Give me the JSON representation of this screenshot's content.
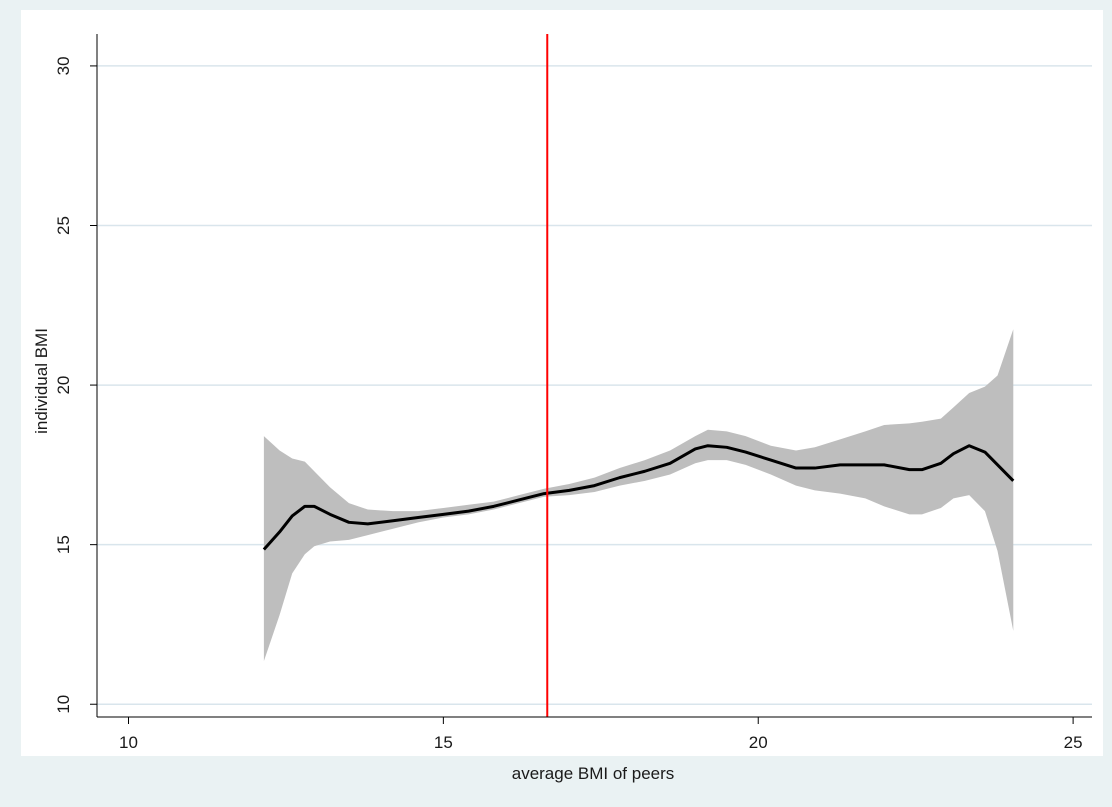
{
  "chart_data": {
    "type": "line",
    "title": "",
    "xlabel": "average BMI of peers",
    "ylabel": "individual BMI",
    "xlim": [
      9.5,
      25.3
    ],
    "ylim": [
      9.6,
      31.0
    ],
    "x_ticks": [
      10,
      15,
      20,
      25
    ],
    "y_ticks": [
      10,
      15,
      20,
      25,
      30
    ],
    "grid": "horizontal",
    "vline": {
      "x": 16.65,
      "color": "#FF0000"
    },
    "series": [
      {
        "role": "fitted",
        "color": "#000000",
        "x": [
          12.15,
          12.4,
          12.6,
          12.8,
          12.95,
          13.2,
          13.5,
          13.8,
          14.2,
          14.6,
          15.0,
          15.4,
          15.8,
          16.2,
          16.6,
          17.0,
          17.4,
          17.8,
          18.2,
          18.6,
          19.0,
          19.2,
          19.5,
          19.8,
          20.2,
          20.6,
          20.9,
          21.3,
          21.7,
          22.0,
          22.4,
          22.6,
          22.9,
          23.1,
          23.35,
          23.6,
          24.05
        ],
        "y": [
          14.85,
          15.4,
          15.9,
          16.2,
          16.2,
          15.95,
          15.7,
          15.65,
          15.75,
          15.85,
          15.95,
          16.05,
          16.2,
          16.4,
          16.6,
          16.7,
          16.85,
          17.1,
          17.3,
          17.55,
          18.0,
          18.1,
          18.05,
          17.9,
          17.65,
          17.4,
          17.4,
          17.5,
          17.5,
          17.5,
          17.35,
          17.35,
          17.55,
          17.85,
          18.1,
          17.9,
          17.0
        ]
      },
      {
        "role": "confidence_band",
        "color": "#BEBEBE",
        "x": [
          12.15,
          12.4,
          12.6,
          12.8,
          12.95,
          13.2,
          13.5,
          13.8,
          14.2,
          14.6,
          15.0,
          15.4,
          15.8,
          16.2,
          16.6,
          17.0,
          17.4,
          17.8,
          18.2,
          18.6,
          19.0,
          19.2,
          19.5,
          19.8,
          20.2,
          20.6,
          20.9,
          21.3,
          21.7,
          22.0,
          22.4,
          22.6,
          22.9,
          23.1,
          23.35,
          23.6,
          23.8,
          24.05
        ],
        "lower": [
          11.35,
          12.8,
          14.1,
          14.7,
          14.95,
          15.1,
          15.15,
          15.3,
          15.5,
          15.7,
          15.85,
          15.95,
          16.1,
          16.3,
          16.5,
          16.55,
          16.65,
          16.85,
          17.0,
          17.2,
          17.55,
          17.65,
          17.65,
          17.5,
          17.2,
          16.85,
          16.7,
          16.6,
          16.45,
          16.2,
          15.95,
          15.95,
          16.15,
          16.45,
          16.55,
          16.05,
          14.8,
          12.3
        ],
        "upper": [
          18.4,
          17.95,
          17.7,
          17.6,
          17.3,
          16.8,
          16.3,
          16.1,
          16.05,
          16.05,
          16.15,
          16.25,
          16.35,
          16.55,
          16.75,
          16.9,
          17.1,
          17.4,
          17.65,
          17.95,
          18.4,
          18.6,
          18.55,
          18.4,
          18.1,
          17.95,
          18.05,
          18.3,
          18.55,
          18.75,
          18.8,
          18.85,
          18.95,
          19.3,
          19.75,
          19.95,
          20.3,
          21.75
        ]
      }
    ]
  }
}
